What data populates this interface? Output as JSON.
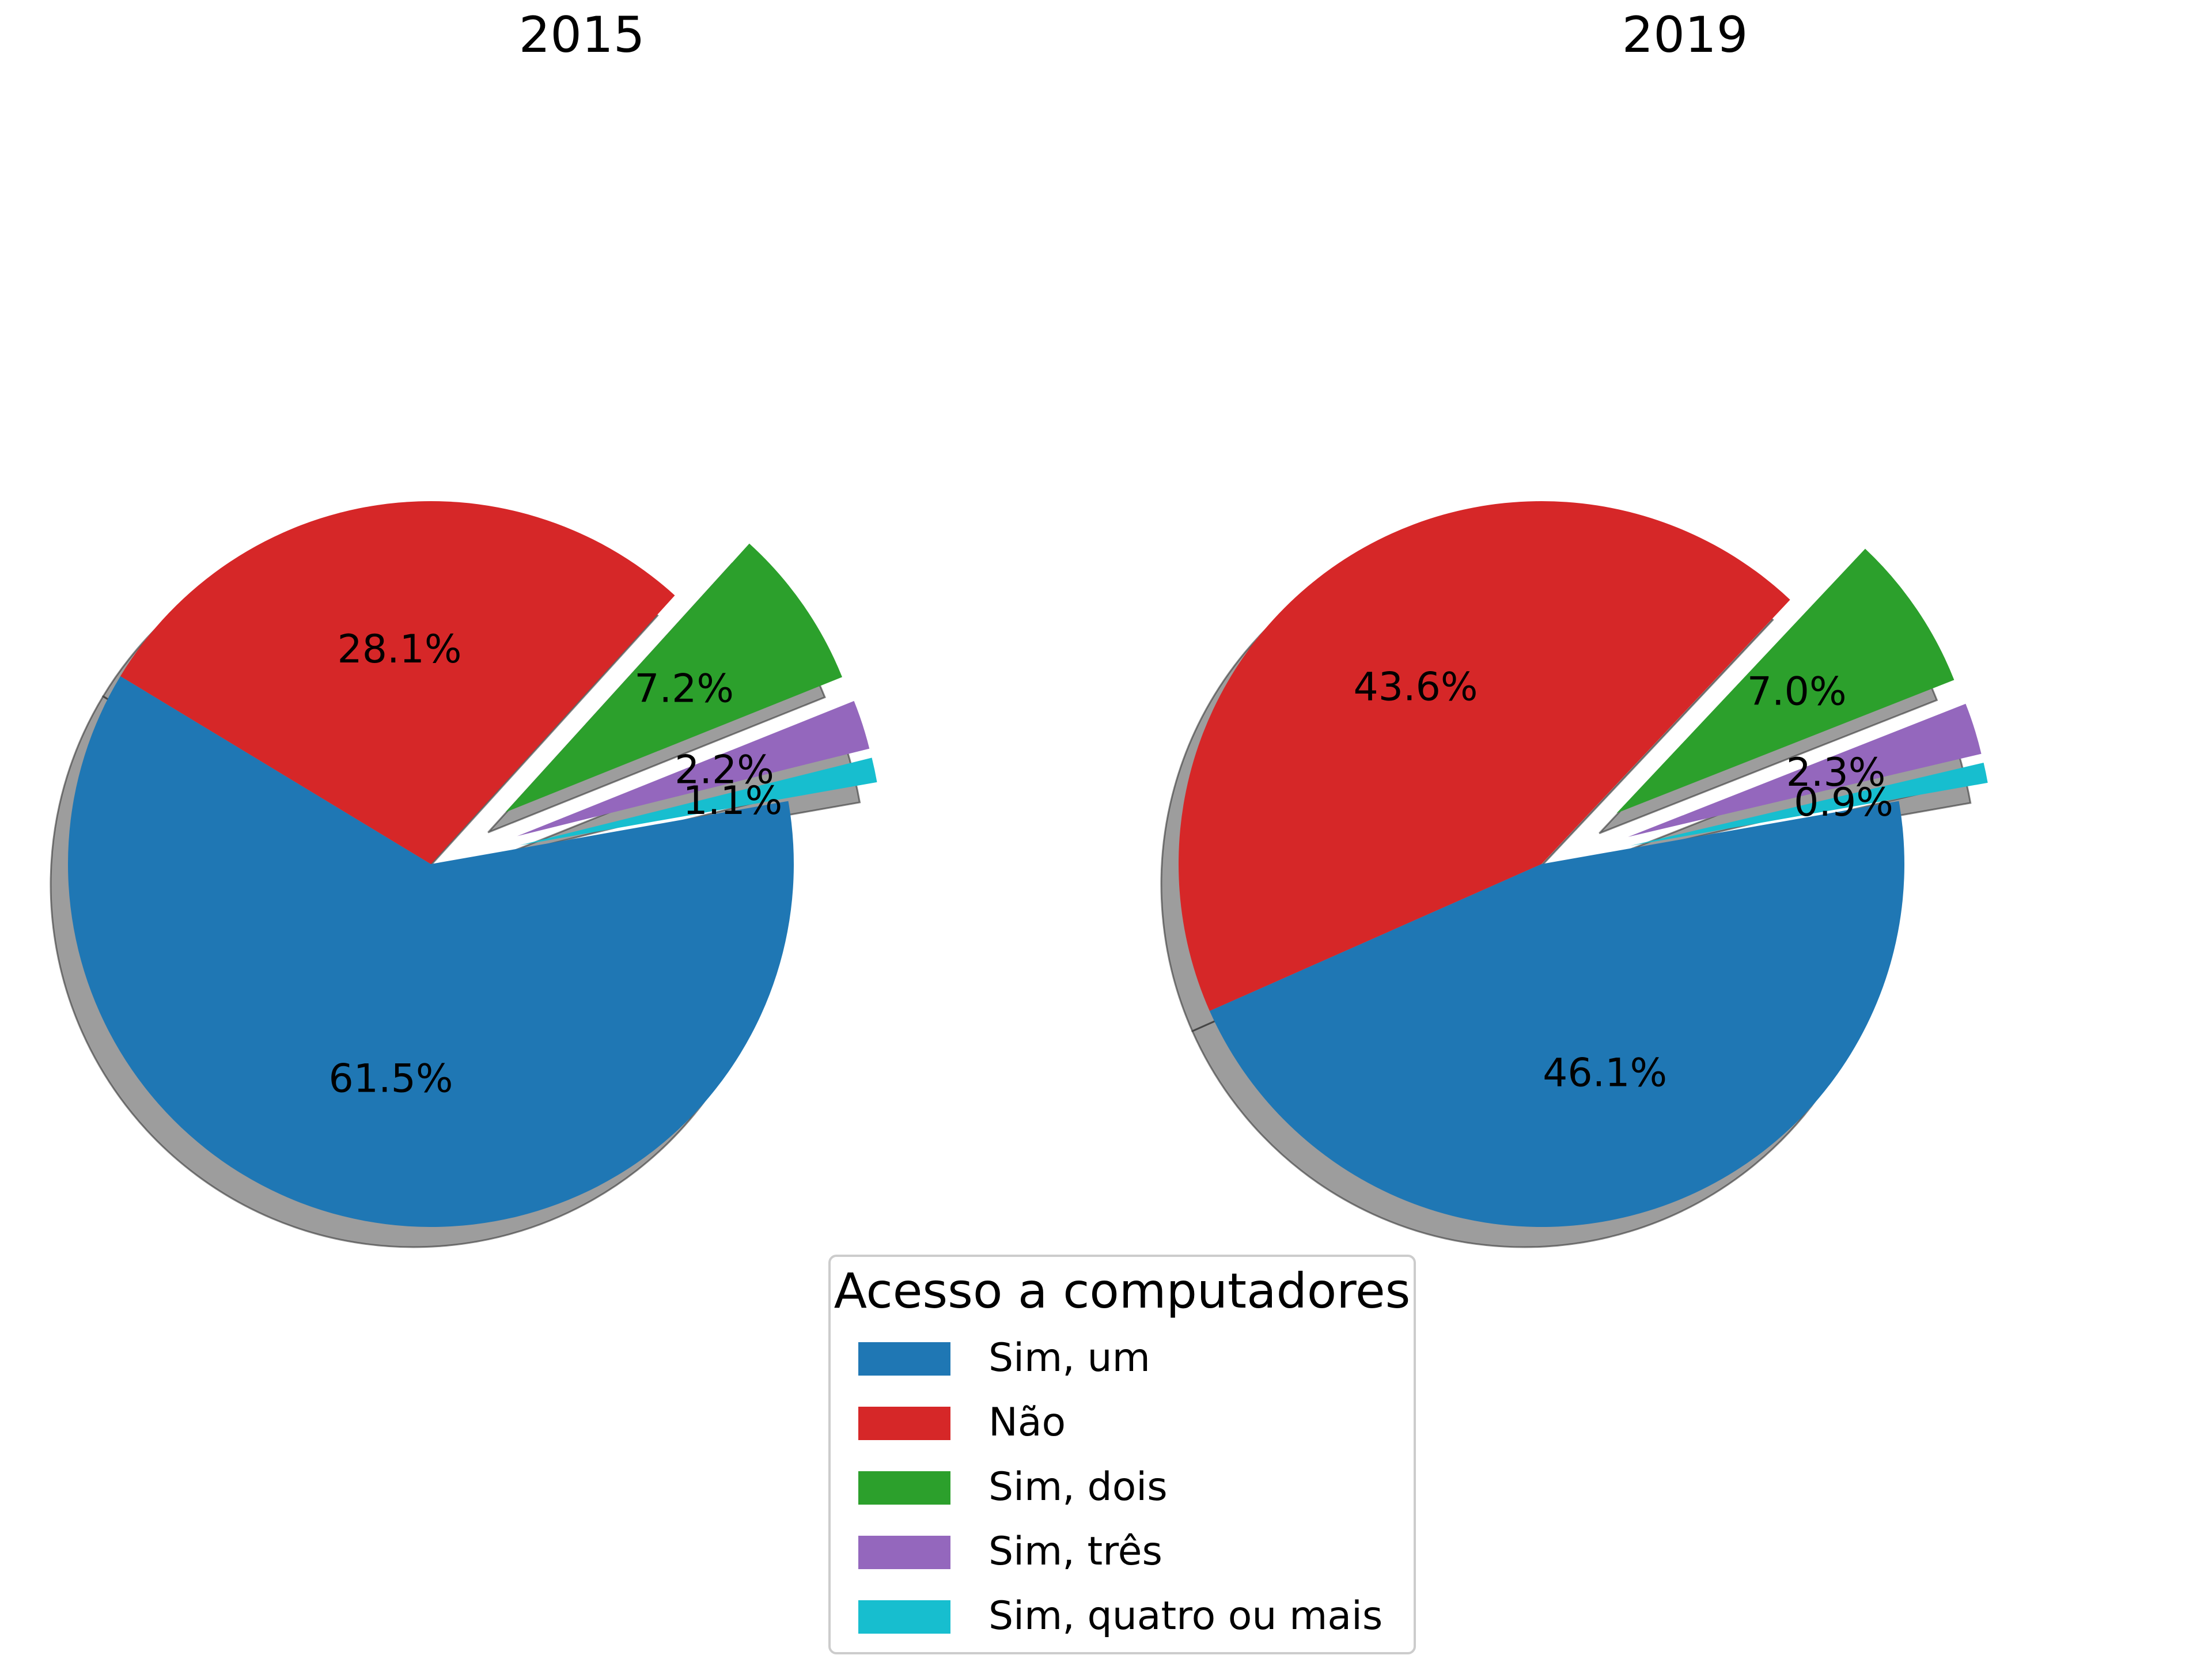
{
  "chart_data": [
    {
      "type": "pie",
      "title": "2015",
      "categories": [
        "Sim, um",
        "Não",
        "Sim, dois",
        "Sim, três",
        "Sim, quatro ou mais"
      ],
      "values": [
        61.5,
        28.1,
        7.2,
        2.2,
        1.1
      ],
      "labels": [
        "61.5%",
        "28.1%",
        "7.2%",
        "2.2%",
        "1.1%"
      ],
      "exploded": [
        false,
        false,
        true,
        true,
        true
      ],
      "shadow": true
    },
    {
      "type": "pie",
      "title": "2019",
      "categories": [
        "Sim, um",
        "Não",
        "Sim, dois",
        "Sim, três",
        "Sim, quatro ou mais"
      ],
      "values": [
        46.1,
        43.6,
        7.0,
        2.3,
        0.9
      ],
      "labels": [
        "46.1%",
        "43.6%",
        "7.0%",
        "2.3%",
        "0.9%"
      ],
      "exploded": [
        false,
        false,
        true,
        true,
        true
      ],
      "shadow": true
    }
  ],
  "legend": {
    "title": "Acesso a computadores",
    "placement": "bottom-center",
    "items": [
      {
        "label": "Sim, um",
        "color": "#1f77b4"
      },
      {
        "label": "Não",
        "color": "#d62728"
      },
      {
        "label": "Sim, dois",
        "color": "#2ca02c"
      },
      {
        "label": "Sim, três",
        "color": "#9467bd"
      },
      {
        "label": "Sim, quatro ou mais",
        "color": "#17becf"
      }
    ]
  }
}
